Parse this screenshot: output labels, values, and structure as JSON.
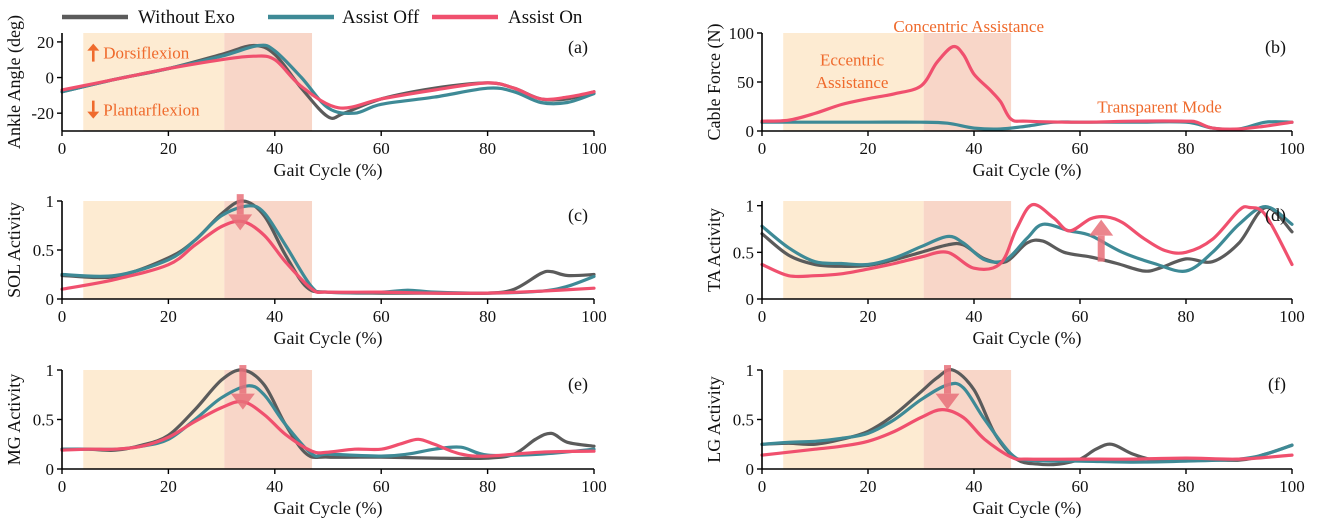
{
  "legend": {
    "series": [
      {
        "key": "without",
        "label": "Without Exo",
        "color": "#5b5b5b"
      },
      {
        "key": "off",
        "label": "Assist Off",
        "color": "#3e8a96"
      },
      {
        "key": "on",
        "label": "Assist On",
        "color": "#f0506e"
      }
    ]
  },
  "colors": {
    "eccentric_band": "#fdebd2",
    "concentric_band": "#f8d6c8",
    "annotation": "#ef6a2c",
    "effect_arrow": "#e8707a"
  },
  "chart_data": [
    {
      "type": "line",
      "panel_label": "(a)",
      "xlabel": "Gait Cycle (%)",
      "ylabel": "Ankle Angle (deg)",
      "xlim": [
        0,
        100
      ],
      "ylim": [
        -30,
        25
      ],
      "xticks": [
        0,
        20,
        40,
        60,
        80,
        100
      ],
      "yticks": [
        -20,
        0,
        20
      ],
      "shaded": [
        {
          "phase": "eccentric",
          "from": 4,
          "to": 30.5
        },
        {
          "phase": "concentric",
          "from": 30.5,
          "to": 47
        }
      ],
      "annotations": [
        {
          "text": "Dorsiflexion",
          "x": 4,
          "y": 14,
          "arrow": "up"
        },
        {
          "text": "Plantarflexion",
          "x": 4,
          "y": -18,
          "arrow": "down"
        }
      ],
      "effect_arrow": null,
      "series": [
        {
          "key": "without",
          "x": [
            0,
            10,
            20,
            30,
            36,
            40,
            45,
            50,
            53,
            60,
            70,
            80,
            85,
            90,
            95,
            100
          ],
          "y": [
            -8,
            -1,
            5,
            13,
            18,
            13,
            -6,
            -22,
            -20,
            -12,
            -6,
            -3,
            -6,
            -12,
            -12,
            -8
          ]
        },
        {
          "key": "off",
          "x": [
            0,
            10,
            20,
            30,
            37,
            40,
            45,
            50,
            55,
            60,
            70,
            80,
            85,
            90,
            95,
            100
          ],
          "y": [
            -8,
            -1,
            5,
            12,
            18,
            15,
            0,
            -17,
            -20,
            -15,
            -11,
            -6,
            -8,
            -14,
            -14,
            -9
          ]
        },
        {
          "key": "on",
          "x": [
            0,
            10,
            20,
            30,
            36,
            40,
            45,
            52,
            60,
            70,
            80,
            85,
            90,
            95,
            100
          ],
          "y": [
            -7,
            -1,
            5,
            10,
            12,
            10,
            -5,
            -17,
            -12,
            -7,
            -3,
            -6,
            -12,
            -11,
            -8
          ]
        }
      ]
    },
    {
      "type": "line",
      "panel_label": "(b)",
      "xlabel": "Gait Cycle (%)",
      "ylabel": "Cable Force (N)",
      "xlim": [
        0,
        100
      ],
      "ylim": [
        0,
        100
      ],
      "xticks": [
        0,
        20,
        40,
        60,
        80,
        100
      ],
      "yticks": [
        0,
        50,
        100
      ],
      "shaded": [
        {
          "phase": "eccentric",
          "from": 4,
          "to": 30.5
        },
        {
          "phase": "concentric",
          "from": 30.5,
          "to": 47
        }
      ],
      "annotations": [
        {
          "text": "Eccentric",
          "x": 17,
          "y": 73
        },
        {
          "text": "Assistance",
          "x": 17,
          "y": 50
        },
        {
          "text": "Concentric Assistance",
          "x": 39,
          "y": 107
        },
        {
          "text": "Transparent Mode",
          "x": 75,
          "y": 25
        }
      ],
      "effect_arrow": null,
      "series": [
        {
          "key": "off",
          "x": [
            0,
            10,
            20,
            30,
            35,
            40,
            45,
            50,
            55,
            60,
            70,
            80,
            85,
            90,
            95,
            100
          ],
          "y": [
            9,
            9,
            9,
            9,
            8,
            3,
            2,
            5,
            9,
            9,
            9,
            9,
            3,
            2,
            9,
            9
          ]
        },
        {
          "key": "on",
          "x": [
            0,
            5,
            10,
            15,
            20,
            25,
            30,
            33,
            36,
            38,
            40,
            43,
            45,
            47,
            50,
            60,
            70,
            80,
            82,
            85,
            90,
            95,
            100
          ],
          "y": [
            10,
            11,
            18,
            27,
            33,
            38,
            46,
            70,
            86,
            78,
            58,
            42,
            30,
            12,
            10,
            9,
            10,
            10,
            9,
            3,
            2,
            5,
            9
          ]
        }
      ]
    },
    {
      "type": "line",
      "panel_label": "(c)",
      "xlabel": "Gait Cycle (%)",
      "ylabel": "SOL Activity",
      "xlim": [
        0,
        100
      ],
      "ylim": [
        0,
        1
      ],
      "xticks": [
        0,
        20,
        40,
        60,
        80,
        100
      ],
      "yticks": [
        0,
        0.5,
        1
      ],
      "ytick_labels": [
        "0",
        "0.5",
        "1"
      ],
      "shaded": [
        {
          "phase": "eccentric",
          "from": 4,
          "to": 30.5
        },
        {
          "phase": "concentric",
          "from": 30.5,
          "to": 47
        }
      ],
      "annotations": [],
      "effect_arrow": {
        "x": 33.5,
        "from": 1.07,
        "to": 0.7
      },
      "series": [
        {
          "key": "without",
          "x": [
            0,
            10,
            20,
            25,
            30,
            34,
            38,
            42,
            46,
            50,
            60,
            70,
            80,
            85,
            90,
            92,
            95,
            100
          ],
          "y": [
            0.24,
            0.23,
            0.42,
            0.6,
            0.87,
            1.0,
            0.85,
            0.45,
            0.12,
            0.07,
            0.06,
            0.06,
            0.06,
            0.1,
            0.26,
            0.28,
            0.24,
            0.25
          ]
        },
        {
          "key": "off",
          "x": [
            0,
            10,
            20,
            25,
            30,
            35,
            38,
            42,
            47,
            50,
            60,
            65,
            70,
            80,
            90,
            95,
            100
          ],
          "y": [
            0.25,
            0.24,
            0.4,
            0.6,
            0.85,
            0.95,
            0.88,
            0.55,
            0.12,
            0.07,
            0.07,
            0.09,
            0.07,
            0.06,
            0.08,
            0.13,
            0.23
          ]
        },
        {
          "key": "on",
          "x": [
            0,
            10,
            20,
            25,
            30,
            34,
            38,
            42,
            47,
            50,
            60,
            70,
            80,
            90,
            100
          ],
          "y": [
            0.1,
            0.2,
            0.35,
            0.55,
            0.74,
            0.79,
            0.65,
            0.38,
            0.1,
            0.07,
            0.07,
            0.06,
            0.06,
            0.08,
            0.11
          ]
        }
      ]
    },
    {
      "type": "line",
      "panel_label": "(d)",
      "xlabel": "Gait Cycle (%)",
      "ylabel": "TA Activity",
      "xlim": [
        0,
        100
      ],
      "ylim": [
        0,
        1.05
      ],
      "xticks": [
        0,
        20,
        40,
        60,
        80,
        100
      ],
      "yticks": [
        0,
        0.5,
        1
      ],
      "ytick_labels": [
        "0",
        "0.5",
        "1"
      ],
      "shaded": [
        {
          "phase": "eccentric",
          "from": 4,
          "to": 30.5
        },
        {
          "phase": "concentric",
          "from": 30.5,
          "to": 47
        }
      ],
      "annotations": [],
      "effect_arrow": {
        "x": 64,
        "from": 0.4,
        "to": 0.85
      },
      "series": [
        {
          "key": "without",
          "x": [
            0,
            5,
            10,
            15,
            20,
            25,
            30,
            35,
            38,
            42,
            46,
            50,
            53,
            57,
            62,
            67,
            72,
            75,
            80,
            85,
            90,
            95,
            100
          ],
          "y": [
            0.7,
            0.47,
            0.37,
            0.35,
            0.36,
            0.42,
            0.5,
            0.58,
            0.58,
            0.43,
            0.4,
            0.6,
            0.62,
            0.5,
            0.45,
            0.38,
            0.3,
            0.33,
            0.43,
            0.4,
            0.6,
            0.98,
            0.72
          ]
        },
        {
          "key": "off",
          "x": [
            0,
            5,
            10,
            15,
            20,
            25,
            30,
            35,
            38,
            42,
            46,
            50,
            53,
            58,
            62,
            68,
            74,
            80,
            85,
            90,
            95,
            100
          ],
          "y": [
            0.78,
            0.55,
            0.4,
            0.38,
            0.37,
            0.44,
            0.56,
            0.67,
            0.6,
            0.42,
            0.42,
            0.65,
            0.8,
            0.73,
            0.68,
            0.5,
            0.38,
            0.3,
            0.5,
            0.8,
            0.99,
            0.8
          ]
        },
        {
          "key": "on",
          "x": [
            0,
            5,
            10,
            15,
            20,
            25,
            30,
            35,
            40,
            45,
            48,
            51,
            55,
            58,
            62,
            65,
            68,
            72,
            76,
            80,
            85,
            90,
            92,
            95,
            100
          ],
          "y": [
            0.37,
            0.25,
            0.25,
            0.27,
            0.32,
            0.38,
            0.45,
            0.5,
            0.33,
            0.38,
            0.75,
            1.01,
            0.87,
            0.73,
            0.86,
            0.88,
            0.82,
            0.65,
            0.52,
            0.5,
            0.64,
            0.95,
            0.98,
            0.9,
            0.37
          ]
        }
      ]
    },
    {
      "type": "line",
      "panel_label": "(e)",
      "xlabel": "Gait Cycle (%)",
      "ylabel": "MG Activity",
      "xlim": [
        0,
        100
      ],
      "ylim": [
        0,
        1
      ],
      "xticks": [
        0,
        20,
        40,
        60,
        80,
        100
      ],
      "yticks": [
        0,
        0.5,
        1
      ],
      "ytick_labels": [
        "0",
        "0.5",
        "1"
      ],
      "shaded": [
        {
          "phase": "eccentric",
          "from": 4,
          "to": 30.5
        },
        {
          "phase": "concentric",
          "from": 30.5,
          "to": 47
        }
      ],
      "annotations": [],
      "effect_arrow": {
        "x": 34,
        "from": 1.05,
        "to": 0.6
      },
      "series": [
        {
          "key": "without",
          "x": [
            0,
            5,
            10,
            15,
            20,
            25,
            30,
            34,
            38,
            42,
            46,
            50,
            60,
            70,
            80,
            85,
            89,
            92,
            95,
            100
          ],
          "y": [
            0.2,
            0.2,
            0.19,
            0.24,
            0.34,
            0.6,
            0.9,
            1.0,
            0.85,
            0.45,
            0.15,
            0.12,
            0.12,
            0.11,
            0.11,
            0.15,
            0.3,
            0.36,
            0.27,
            0.23
          ]
        },
        {
          "key": "off",
          "x": [
            0,
            5,
            10,
            15,
            20,
            25,
            30,
            35,
            38,
            42,
            47,
            50,
            60,
            65,
            70,
            75,
            80,
            90,
            100
          ],
          "y": [
            0.2,
            0.2,
            0.2,
            0.23,
            0.3,
            0.5,
            0.72,
            0.84,
            0.75,
            0.45,
            0.15,
            0.15,
            0.13,
            0.15,
            0.2,
            0.22,
            0.14,
            0.15,
            0.2
          ]
        },
        {
          "key": "on",
          "x": [
            0,
            5,
            10,
            15,
            20,
            25,
            30,
            34,
            38,
            42,
            47,
            50,
            55,
            60,
            64,
            67,
            70,
            75,
            80,
            90,
            100
          ],
          "y": [
            0.19,
            0.2,
            0.2,
            0.23,
            0.32,
            0.48,
            0.62,
            0.68,
            0.55,
            0.35,
            0.18,
            0.17,
            0.2,
            0.2,
            0.26,
            0.3,
            0.25,
            0.15,
            0.13,
            0.17,
            0.18
          ]
        }
      ]
    },
    {
      "type": "line",
      "panel_label": "(f)",
      "xlabel": "Gait Cycle (%)",
      "ylabel": "LG Activity",
      "xlim": [
        0,
        100
      ],
      "ylim": [
        0,
        1
      ],
      "xticks": [
        0,
        20,
        40,
        60,
        80,
        100
      ],
      "yticks": [
        0,
        0.5,
        1
      ],
      "ytick_labels": [
        "0",
        "0.5",
        "1"
      ],
      "shaded": [
        {
          "phase": "eccentric",
          "from": 4,
          "to": 30.5
        },
        {
          "phase": "concentric",
          "from": 30.5,
          "to": 47
        }
      ],
      "annotations": [],
      "effect_arrow": {
        "x": 35,
        "from": 1.05,
        "to": 0.6
      },
      "series": [
        {
          "key": "without",
          "x": [
            0,
            5,
            10,
            15,
            20,
            25,
            30,
            33,
            36,
            40,
            44,
            48,
            52,
            56,
            60,
            63,
            66,
            70,
            75,
            80,
            90,
            95,
            100
          ],
          "y": [
            0.25,
            0.26,
            0.25,
            0.3,
            0.38,
            0.55,
            0.78,
            0.92,
            1.0,
            0.8,
            0.35,
            0.1,
            0.05,
            0.05,
            0.1,
            0.2,
            0.25,
            0.15,
            0.08,
            0.1,
            0.09,
            0.15,
            0.24
          ]
        },
        {
          "key": "off",
          "x": [
            0,
            5,
            10,
            15,
            20,
            25,
            30,
            35,
            38,
            42,
            47,
            50,
            55,
            60,
            70,
            80,
            90,
            95,
            100
          ],
          "y": [
            0.25,
            0.27,
            0.28,
            0.31,
            0.36,
            0.5,
            0.7,
            0.85,
            0.82,
            0.5,
            0.15,
            0.09,
            0.08,
            0.08,
            0.07,
            0.08,
            0.1,
            0.15,
            0.24
          ]
        },
        {
          "key": "on",
          "x": [
            0,
            5,
            10,
            15,
            20,
            25,
            30,
            34,
            38,
            42,
            47,
            50,
            60,
            70,
            80,
            90,
            100
          ],
          "y": [
            0.14,
            0.17,
            0.2,
            0.23,
            0.28,
            0.38,
            0.52,
            0.6,
            0.52,
            0.3,
            0.12,
            0.1,
            0.1,
            0.1,
            0.11,
            0.1,
            0.14
          ]
        }
      ]
    }
  ]
}
